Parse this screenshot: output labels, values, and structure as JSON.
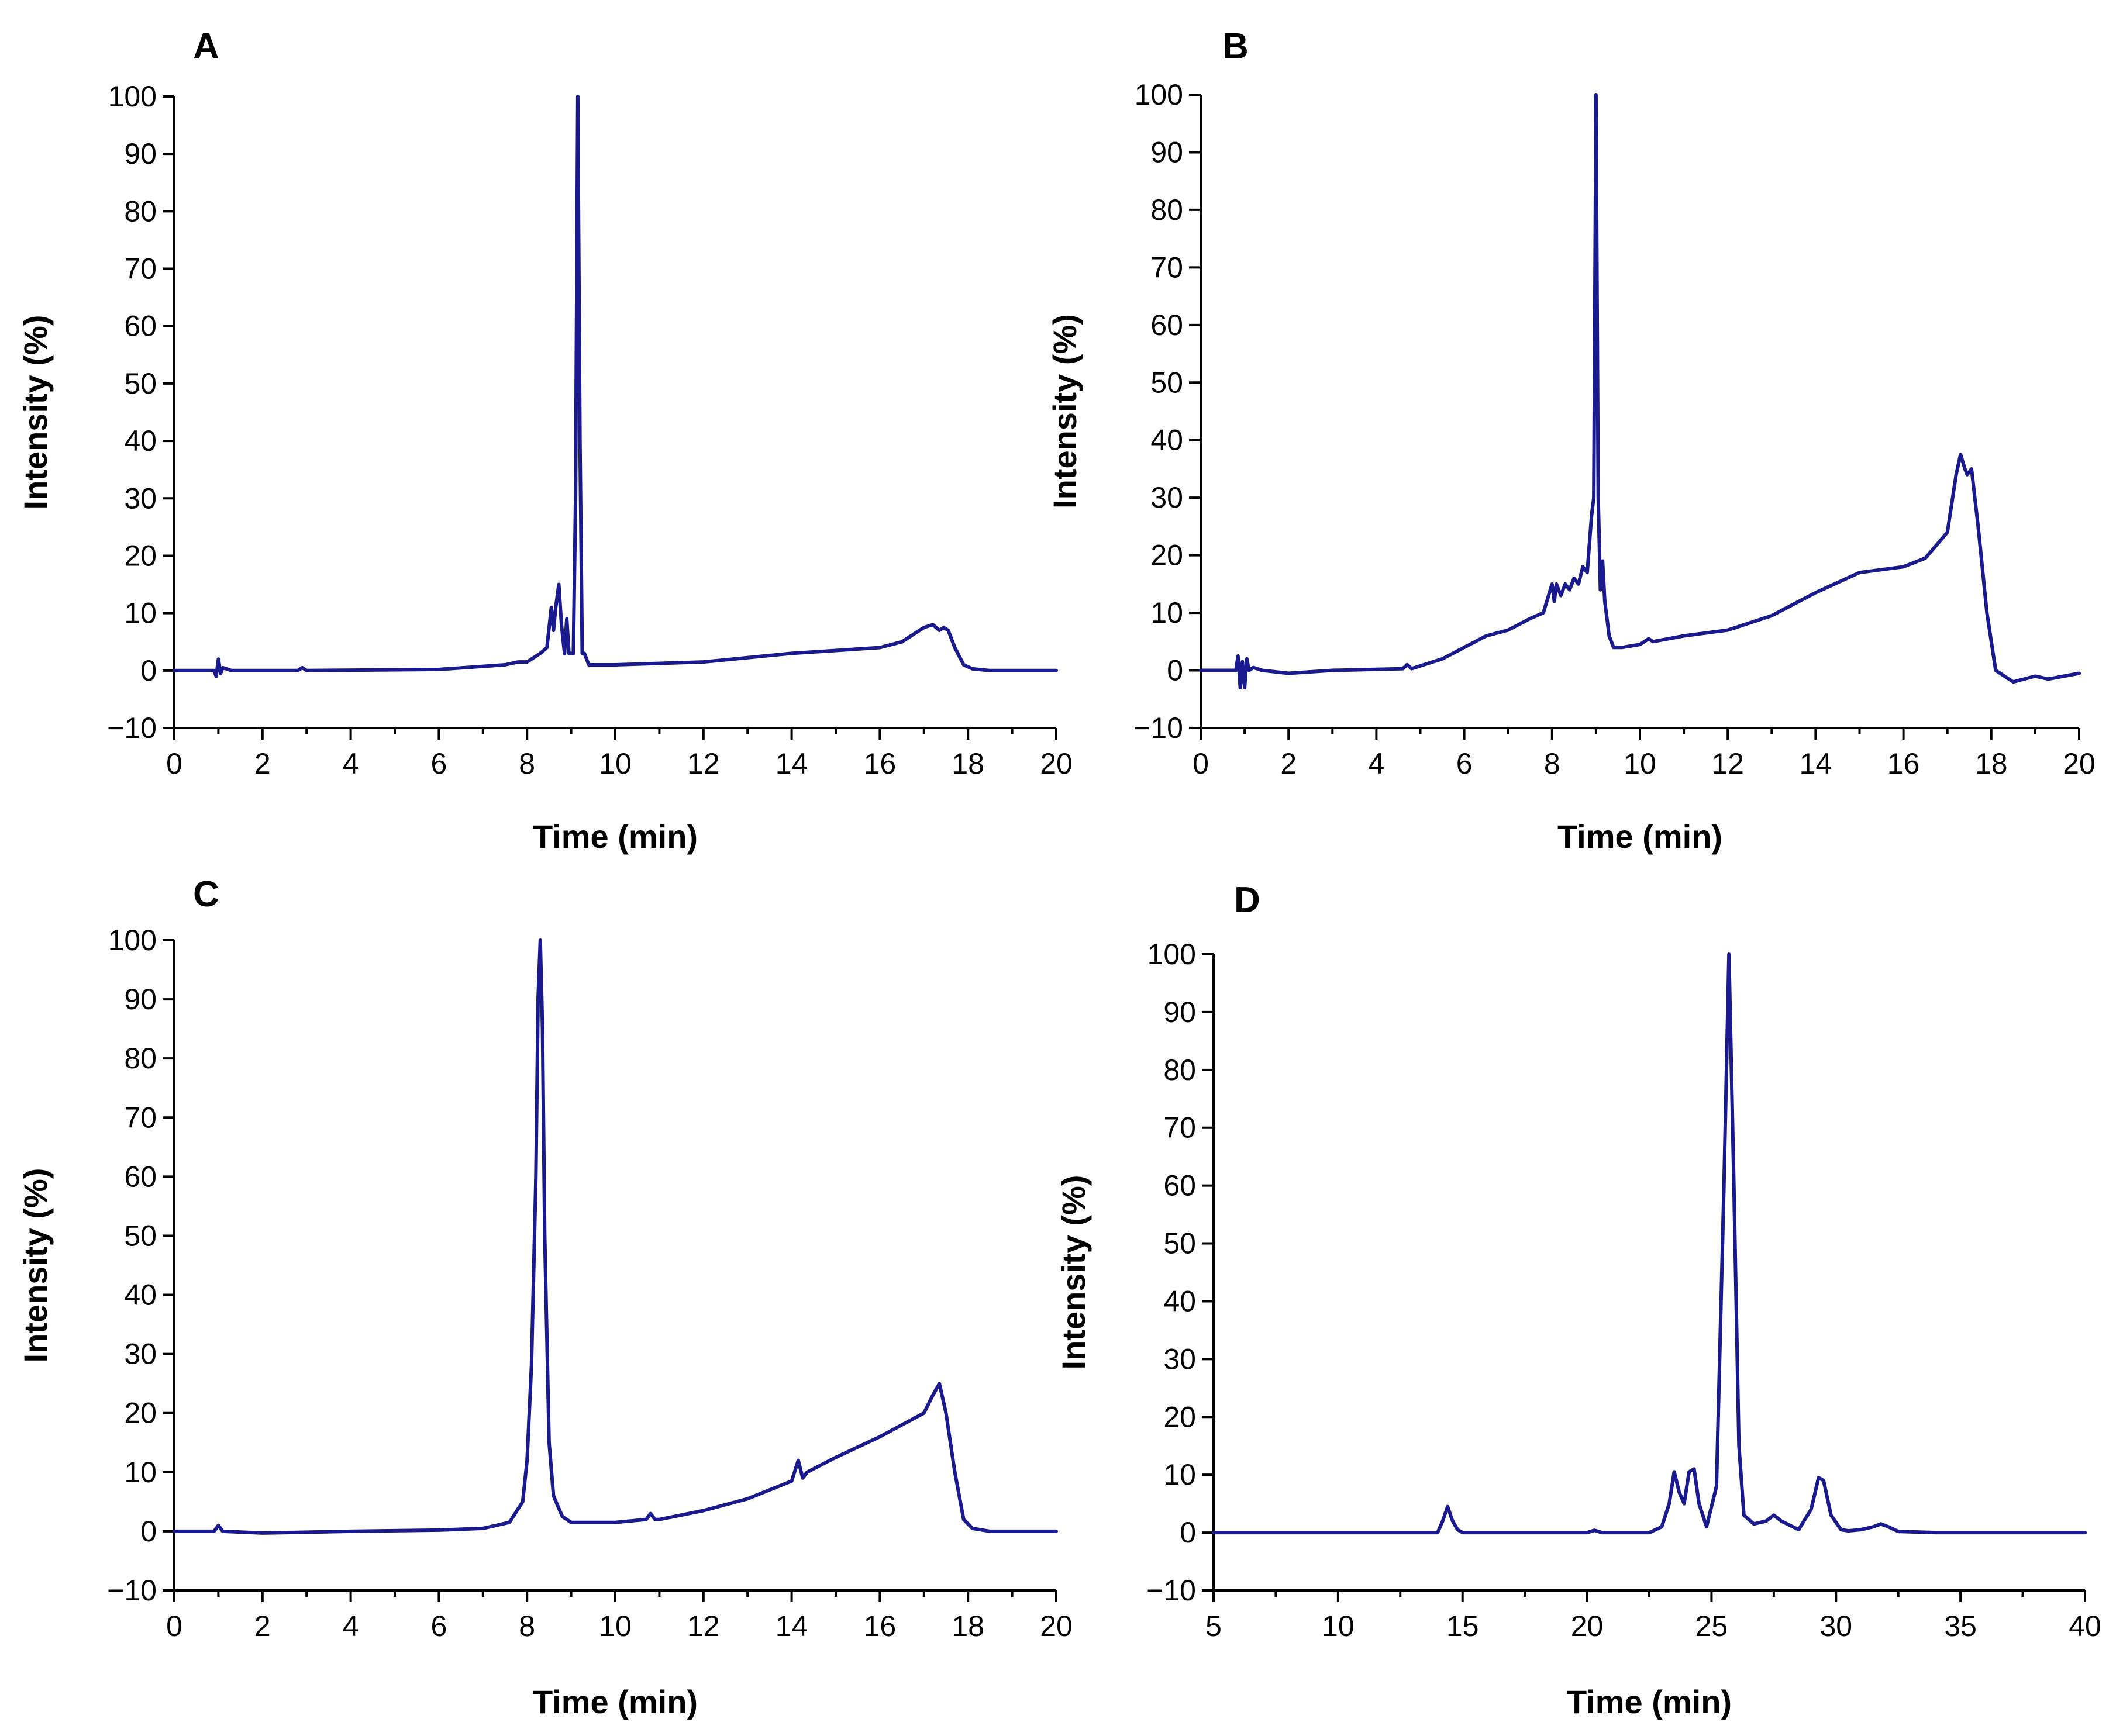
{
  "figure": {
    "colors": {
      "trace": "#1a1a8f"
    }
  },
  "chart_data": [
    {
      "panel": "A",
      "type": "line",
      "xlabel": "Time (min)",
      "ylabel": "Intensity (%)",
      "xlim": [
        0,
        20
      ],
      "ylim": [
        -10,
        100
      ],
      "xticks": [
        0,
        2,
        4,
        6,
        8,
        10,
        12,
        14,
        16,
        18,
        20
      ],
      "yticks": [
        -10,
        0,
        10,
        20,
        30,
        40,
        50,
        60,
        70,
        80,
        90,
        100
      ],
      "xtick_labels": [
        "0",
        "2",
        "4",
        "6",
        "8",
        "10",
        "12",
        "14",
        "16",
        "18",
        "20"
      ],
      "ytick_labels": [
        "−10",
        "0",
        "10",
        "20",
        "30",
        "40",
        "50",
        "60",
        "70",
        "80",
        "90",
        "100"
      ],
      "series": [
        {
          "name": "A",
          "x": [
            0,
            0.9,
            0.95,
            1.0,
            1.05,
            1.1,
            1.3,
            2.8,
            2.9,
            3.0,
            6.0,
            7.5,
            7.8,
            8.0,
            8.3,
            8.45,
            8.55,
            8.6,
            8.65,
            8.72,
            8.78,
            8.85,
            8.9,
            8.95,
            9.05,
            9.1,
            9.15,
            9.2,
            9.25,
            9.3,
            9.4,
            9.6,
            10,
            12,
            14,
            15,
            16,
            16.5,
            17.0,
            17.2,
            17.35,
            17.45,
            17.55,
            17.7,
            17.9,
            18.1,
            18.5,
            20
          ],
          "y": [
            0,
            0,
            -1,
            2,
            -0.5,
            0.5,
            0,
            0,
            0.5,
            0,
            0.2,
            1,
            1.5,
            1.5,
            3,
            4,
            11,
            7,
            11,
            15,
            8,
            3,
            9,
            3,
            3,
            30,
            100,
            40,
            3,
            3,
            1,
            1,
            1,
            1.5,
            3,
            3.5,
            4,
            5,
            7.5,
            8,
            7,
            7.5,
            7,
            4,
            1,
            0.3,
            0,
            0
          ]
        }
      ]
    },
    {
      "panel": "B",
      "type": "line",
      "xlabel": "Time (min)",
      "ylabel": "Intensity (%)",
      "xlim": [
        0,
        20
      ],
      "ylim": [
        -10,
        100
      ],
      "xticks": [
        0,
        2,
        4,
        6,
        8,
        10,
        12,
        14,
        16,
        18,
        20
      ],
      "yticks": [
        -10,
        0,
        10,
        20,
        30,
        40,
        50,
        60,
        70,
        80,
        90,
        100
      ],
      "xtick_labels": [
        "0",
        "2",
        "4",
        "6",
        "8",
        "10",
        "12",
        "14",
        "16",
        "18",
        "20"
      ],
      "ytick_labels": [
        "−10",
        "0",
        "10",
        "20",
        "30",
        "40",
        "50",
        "60",
        "70",
        "80",
        "90",
        "100"
      ],
      "series": [
        {
          "name": "B",
          "x": [
            0,
            0.8,
            0.85,
            0.9,
            0.95,
            1.0,
            1.05,
            1.1,
            1.2,
            1.4,
            2.0,
            3.0,
            4.6,
            4.7,
            4.8,
            5.5,
            6.0,
            6.5,
            7.0,
            7.5,
            7.8,
            8.0,
            8.05,
            8.1,
            8.2,
            8.3,
            8.4,
            8.5,
            8.6,
            8.7,
            8.8,
            8.9,
            8.95,
            9.0,
            9.05,
            9.1,
            9.15,
            9.2,
            9.25,
            9.3,
            9.4,
            9.6,
            10.0,
            10.2,
            10.3,
            11,
            12,
            13,
            14,
            15,
            16,
            16.5,
            17.0,
            17.2,
            17.3,
            17.4,
            17.45,
            17.55,
            17.7,
            17.9,
            18.1,
            18.5,
            19,
            19.3,
            20
          ],
          "y": [
            0,
            0,
            2.5,
            -3,
            1.5,
            -3,
            2,
            0,
            0.5,
            0,
            -0.5,
            0,
            0.3,
            1,
            0.3,
            2,
            4,
            6,
            7,
            9,
            10,
            15,
            12,
            15,
            13,
            15,
            14,
            16,
            15,
            18,
            17,
            27,
            30,
            100,
            30,
            14,
            19,
            12,
            9,
            6,
            4,
            4,
            4.5,
            5.5,
            5,
            6,
            7,
            9.5,
            13.5,
            17,
            18,
            19.5,
            24,
            34,
            37.5,
            35,
            34,
            35,
            25,
            10,
            0,
            -2,
            -1,
            -1.5,
            -0.5
          ]
        }
      ]
    },
    {
      "panel": "C",
      "type": "line",
      "xlabel": "Time (min)",
      "ylabel": "Intensity (%)",
      "xlim": [
        0,
        20
      ],
      "ylim": [
        -10,
        100
      ],
      "xticks": [
        0,
        2,
        4,
        6,
        8,
        10,
        12,
        14,
        16,
        18,
        20
      ],
      "yticks": [
        -10,
        0,
        10,
        20,
        30,
        40,
        50,
        60,
        70,
        80,
        90,
        100
      ],
      "xtick_labels": [
        "0",
        "2",
        "4",
        "6",
        "8",
        "10",
        "12",
        "14",
        "16",
        "18",
        "20"
      ],
      "ytick_labels": [
        "−10",
        "0",
        "10",
        "20",
        "30",
        "40",
        "50",
        "60",
        "70",
        "80",
        "90",
        "100"
      ],
      "series": [
        {
          "name": "C",
          "x": [
            0,
            0.9,
            1.0,
            1.1,
            2.0,
            4.0,
            6.0,
            7.0,
            7.6,
            7.9,
            8.0,
            8.1,
            8.2,
            8.25,
            8.3,
            8.35,
            8.4,
            8.5,
            8.6,
            8.8,
            9.0,
            10.0,
            10.7,
            10.8,
            10.9,
            11.0,
            12,
            13,
            14.0,
            14.15,
            14.25,
            14.35,
            15,
            16,
            16.5,
            17.0,
            17.2,
            17.35,
            17.5,
            17.7,
            17.9,
            18.1,
            18.5,
            20
          ],
          "y": [
            0,
            0,
            1,
            0,
            -0.3,
            0,
            0.2,
            0.5,
            1.5,
            5,
            12,
            28,
            60,
            90,
            100,
            85,
            50,
            15,
            6,
            2.5,
            1.5,
            1.5,
            2,
            3,
            2,
            2,
            3.5,
            5.5,
            8.5,
            12,
            9,
            10,
            12.5,
            16,
            18,
            20,
            23,
            25,
            20,
            10,
            2,
            0.5,
            0,
            0
          ]
        }
      ]
    },
    {
      "panel": "D",
      "type": "line",
      "xlabel": "Time (min)",
      "ylabel": "Intensity (%)",
      "xlim": [
        5,
        40
      ],
      "ylim": [
        -10,
        100
      ],
      "xticks": [
        5,
        10,
        15,
        20,
        25,
        30,
        35,
        40
      ],
      "yticks": [
        -10,
        0,
        10,
        20,
        30,
        40,
        50,
        60,
        70,
        80,
        90,
        100
      ],
      "xtick_labels": [
        "5",
        "10",
        "15",
        "20",
        "25",
        "30",
        "35",
        "40"
      ],
      "ytick_labels": [
        "−10",
        "0",
        "10",
        "20",
        "30",
        "40",
        "50",
        "60",
        "70",
        "80",
        "90",
        "100"
      ],
      "series": [
        {
          "name": "D",
          "x": [
            5,
            14.0,
            14.2,
            14.4,
            14.6,
            14.8,
            15.0,
            20.0,
            20.3,
            20.6,
            22.5,
            23.0,
            23.3,
            23.5,
            23.7,
            23.9,
            24.1,
            24.3,
            24.5,
            24.8,
            25.2,
            25.5,
            25.7,
            25.9,
            26.1,
            26.3,
            26.7,
            27.2,
            27.5,
            27.8,
            28.5,
            29.0,
            29.3,
            29.5,
            29.8,
            30.2,
            30.5,
            31.0,
            31.5,
            31.8,
            32.1,
            32.5,
            34,
            40
          ],
          "y": [
            0,
            0,
            2,
            4.5,
            2,
            0.5,
            0,
            0,
            0.4,
            0,
            0,
            1,
            5,
            10.5,
            7,
            5,
            10.5,
            11,
            5,
            1,
            8,
            60,
            100,
            60,
            15,
            3,
            1.5,
            2,
            3,
            2,
            0.5,
            4,
            9.5,
            9,
            3,
            0.5,
            0.3,
            0.5,
            1,
            1.5,
            1,
            0.2,
            0,
            0
          ]
        }
      ]
    }
  ]
}
